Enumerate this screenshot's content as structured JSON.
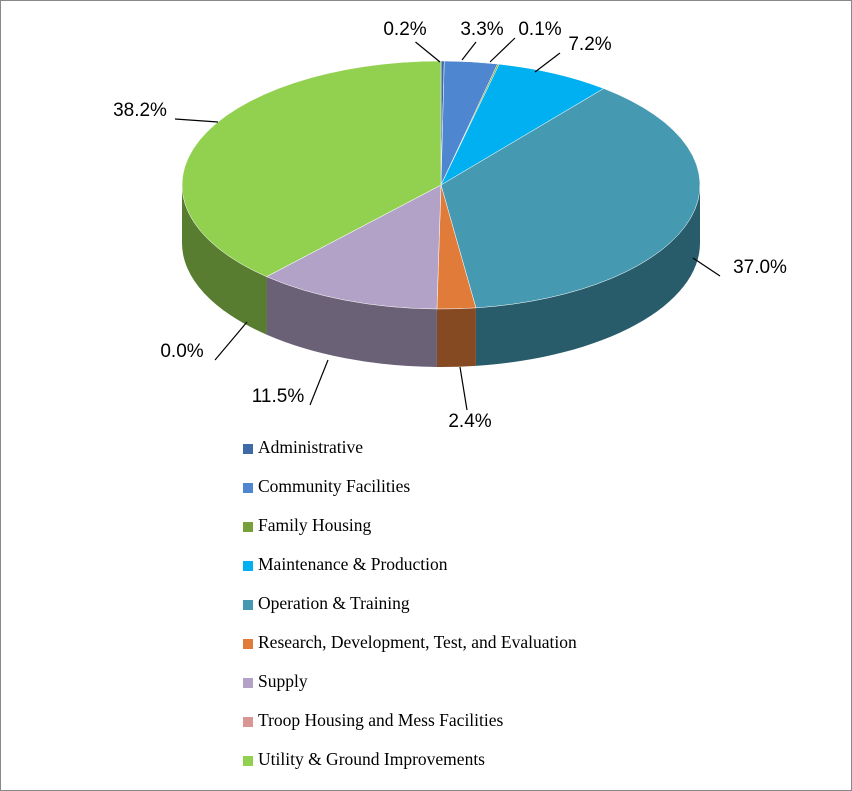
{
  "chart_data": {
    "type": "pie3d",
    "categories": [
      "Administrative",
      "Community Facilities",
      "Family Housing",
      "Maintenance & Production",
      "Operation & Training",
      "Research, Development, Test, and Evaluation",
      "Supply",
      "Troop Housing and Mess Facilities",
      "Utility & Ground Improvements"
    ],
    "values": [
      0.2,
      3.3,
      0.1,
      7.2,
      37.0,
      2.4,
      11.5,
      0.0,
      38.2
    ],
    "value_labels": [
      "0.2%",
      "3.3%",
      "0.1%",
      "7.2%",
      "37.0%",
      "2.4%",
      "11.5%",
      "0.0%",
      "38.2%"
    ],
    "colors": [
      "#3f6aa8",
      "#4f86d0",
      "#77a03a",
      "#00b0f0",
      "#4599b0",
      "#e07b39",
      "#b3a2c7",
      "#d99694",
      "#92d050"
    ],
    "legend": "bottom"
  }
}
